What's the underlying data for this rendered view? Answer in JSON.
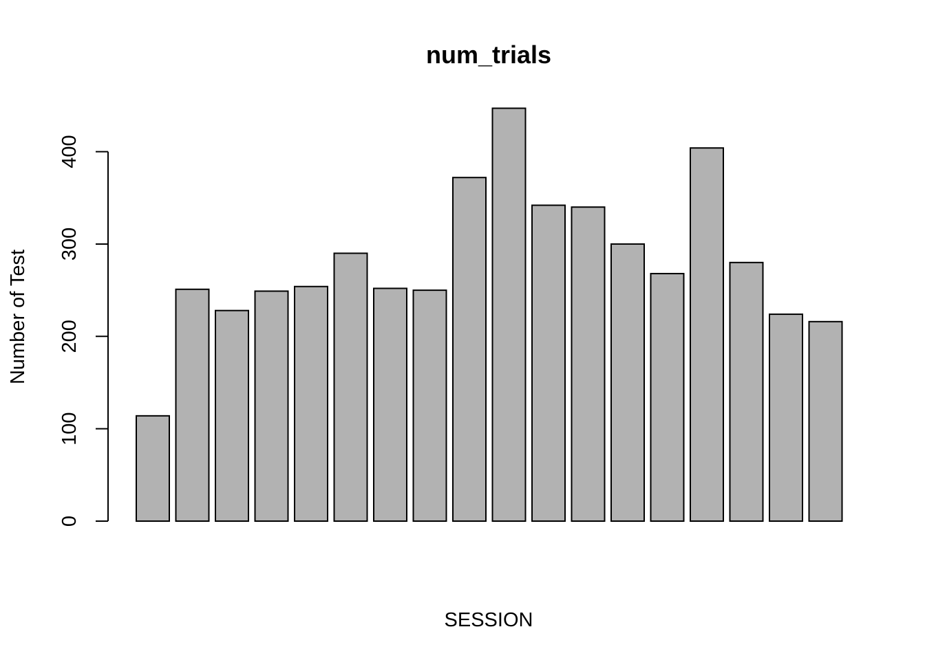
{
  "chart_data": {
    "type": "bar",
    "title": "num_trials",
    "xlabel": "SESSION",
    "ylabel": "Number of Test",
    "categories": [
      "",
      "",
      "",
      "",
      "",
      "",
      "",
      "",
      "",
      "",
      "",
      "",
      "",
      "",
      "",
      "",
      "",
      ""
    ],
    "values": [
      114,
      251,
      228,
      249,
      254,
      290,
      252,
      250,
      372,
      447,
      342,
      340,
      300,
      268,
      404,
      280,
      224,
      216
    ],
    "ylim": [
      0,
      447
    ],
    "yticks": [
      0,
      100,
      200,
      300,
      400
    ],
    "bar_color": "#b2b2b2",
    "grid": false,
    "legend": "none"
  }
}
